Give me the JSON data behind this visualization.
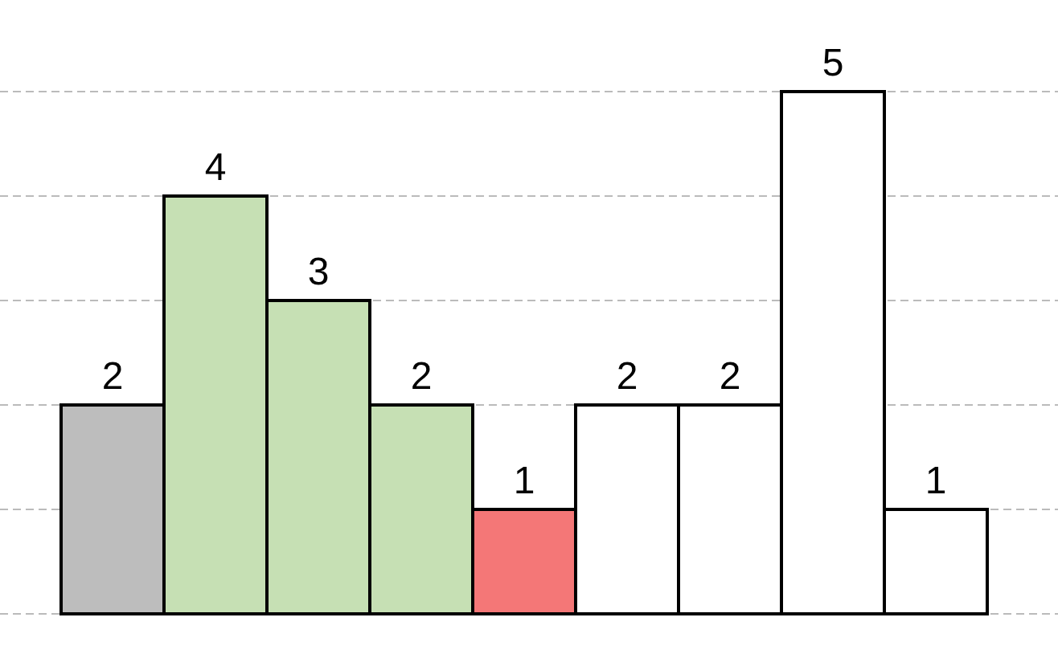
{
  "chart_data": {
    "type": "bar",
    "categories": [
      null,
      null,
      null,
      null,
      null,
      null,
      null,
      null,
      null
    ],
    "values": [
      2,
      4,
      3,
      2,
      1,
      2,
      2,
      5,
      1
    ],
    "colors": [
      "#bdbdbd",
      "#c6e0b4",
      "#c6e0b4",
      "#c6e0b4",
      "#f47777",
      "#ffffff",
      "#ffffff",
      "#ffffff",
      "#ffffff"
    ],
    "yticks": [
      {
        "value": 0,
        "label": null
      },
      {
        "value": 1,
        "label": null
      },
      {
        "value": 2,
        "label": null
      },
      {
        "value": 3,
        "label": null
      },
      {
        "value": 4,
        "label": null
      },
      {
        "value": 5,
        "label": null
      }
    ],
    "grid": "y",
    "data_labels": true
  }
}
